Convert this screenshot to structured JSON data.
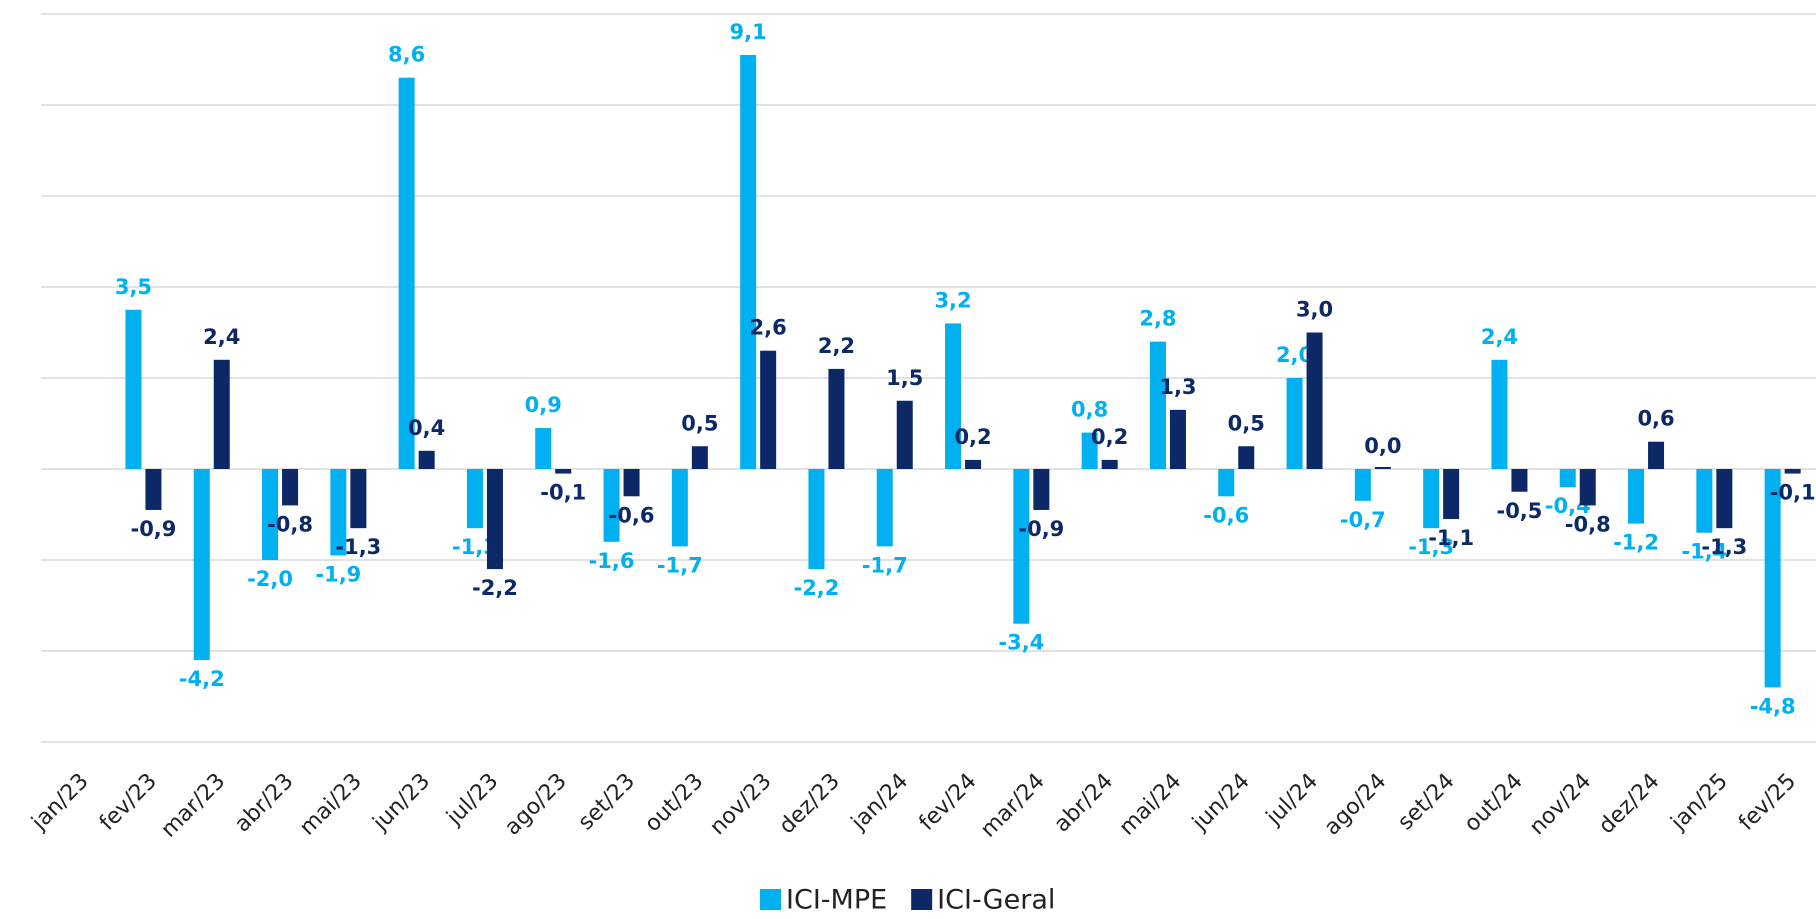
{
  "chart_data": {
    "type": "bar",
    "categories": [
      "jan/23",
      "fev/23",
      "mar/23",
      "abr/23",
      "mai/23",
      "jun/23",
      "jul/23",
      "ago/23",
      "set/23",
      "out/23",
      "nov/23",
      "dez/23",
      "jan/24",
      "fev/24",
      "mar/24",
      "abr/24",
      "mai/24",
      "jun/24",
      "jul/24",
      "ago/24",
      "set/24",
      "out/24",
      "nov/24",
      "dez/24",
      "jan/25",
      "fev/25"
    ],
    "series": [
      {
        "name": "ICI-MPE",
        "color": "#00b0f0",
        "values": [
          null,
          3.5,
          -4.2,
          -2.0,
          -1.9,
          8.6,
          -1.3,
          0.9,
          -1.6,
          -1.7,
          9.1,
          -2.2,
          -1.7,
          3.2,
          -3.4,
          0.8,
          2.8,
          -0.6,
          2.0,
          -0.7,
          -1.3,
          2.4,
          -0.4,
          -1.2,
          -1.4,
          -4.8
        ],
        "value_labels": [
          null,
          "3,5",
          "-4,2",
          "-2,0",
          "-1,9",
          "8,6",
          "-1,3",
          "0,9",
          "-1,6",
          "-1,7",
          "9,1",
          "-2,2",
          "-1,7",
          "3,2",
          "-3,4",
          "0,8",
          "2,8",
          "-0,6",
          "2,0",
          "-0,7",
          "-1,3",
          "2,4",
          "-0,4",
          "-1,2",
          "-1,4",
          "-4,8"
        ]
      },
      {
        "name": "ICI-Geral",
        "color": "#0c2866",
        "values": [
          null,
          -0.9,
          2.4,
          -0.8,
          -1.3,
          0.4,
          -2.2,
          -0.1,
          -0.6,
          0.5,
          2.6,
          2.2,
          1.5,
          0.2,
          -0.9,
          0.2,
          1.3,
          0.5,
          3.0,
          0.0,
          -1.1,
          -0.5,
          -0.8,
          0.6,
          -1.3,
          -0.1
        ],
        "value_labels": [
          null,
          "-0,9",
          "2,4",
          "-0,8",
          "-1,3",
          "0,4",
          "-2,2",
          "-0,1",
          "-0,6",
          "0,5",
          "2,6",
          "2,2",
          "1,5",
          "0,2",
          "-0,9",
          "0,2",
          "1,3",
          "0,5",
          "3,0",
          "0,0",
          "-1,1",
          "-0,5",
          "-0,8",
          "0,6",
          "-1,3",
          "-0,1"
        ]
      }
    ],
    "ylim": [
      -6,
      10
    ],
    "yticks": [
      -6,
      -4,
      -2,
      0,
      2,
      4,
      6,
      8,
      10
    ],
    "grid": true,
    "legend": "bottom"
  }
}
